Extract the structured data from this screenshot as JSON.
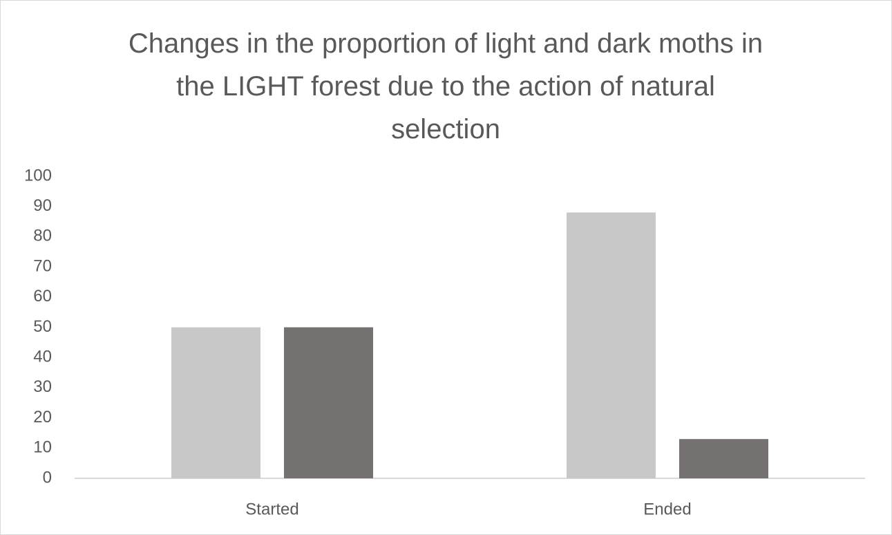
{
  "chart_data": {
    "type": "bar",
    "title": "Changes in the proportion of light and dark moths in the LIGHT forest due to the action of natural selection",
    "categories": [
      "Started",
      "Ended"
    ],
    "series": [
      {
        "color": "#c8c8c8",
        "values": [
          50,
          88
        ]
      },
      {
        "color": "#757171",
        "values": [
          50,
          13
        ]
      }
    ],
    "ylim": [
      0,
      100
    ],
    "yticks": [
      0,
      10,
      20,
      30,
      40,
      50,
      60,
      70,
      80,
      90,
      100
    ],
    "grid": false
  }
}
